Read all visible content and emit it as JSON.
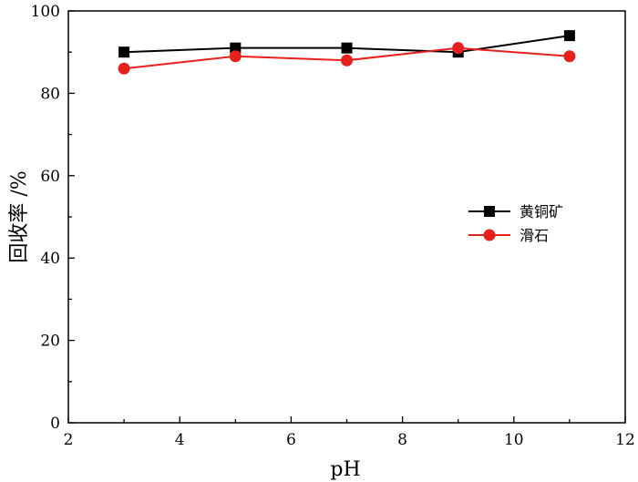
{
  "chart_data": {
    "type": "line",
    "xlabel": "pH",
    "ylabel": "回收率 /%",
    "xlim": [
      2,
      12
    ],
    "ylim": [
      0,
      100
    ],
    "xticks": [
      2,
      4,
      6,
      8,
      10,
      12
    ],
    "yticks": [
      0,
      20,
      40,
      60,
      80,
      100
    ],
    "grid": false,
    "legend_position": "right",
    "x": [
      3,
      5,
      7,
      9,
      11
    ],
    "series": [
      {
        "name": "黄铜矿",
        "values": [
          90,
          91,
          91,
          90,
          94
        ],
        "color": "#000000",
        "marker": "square"
      },
      {
        "name": "滑石",
        "values": [
          86,
          89,
          88,
          91,
          89
        ],
        "color": "#e8201d",
        "marker": "circle"
      }
    ]
  }
}
